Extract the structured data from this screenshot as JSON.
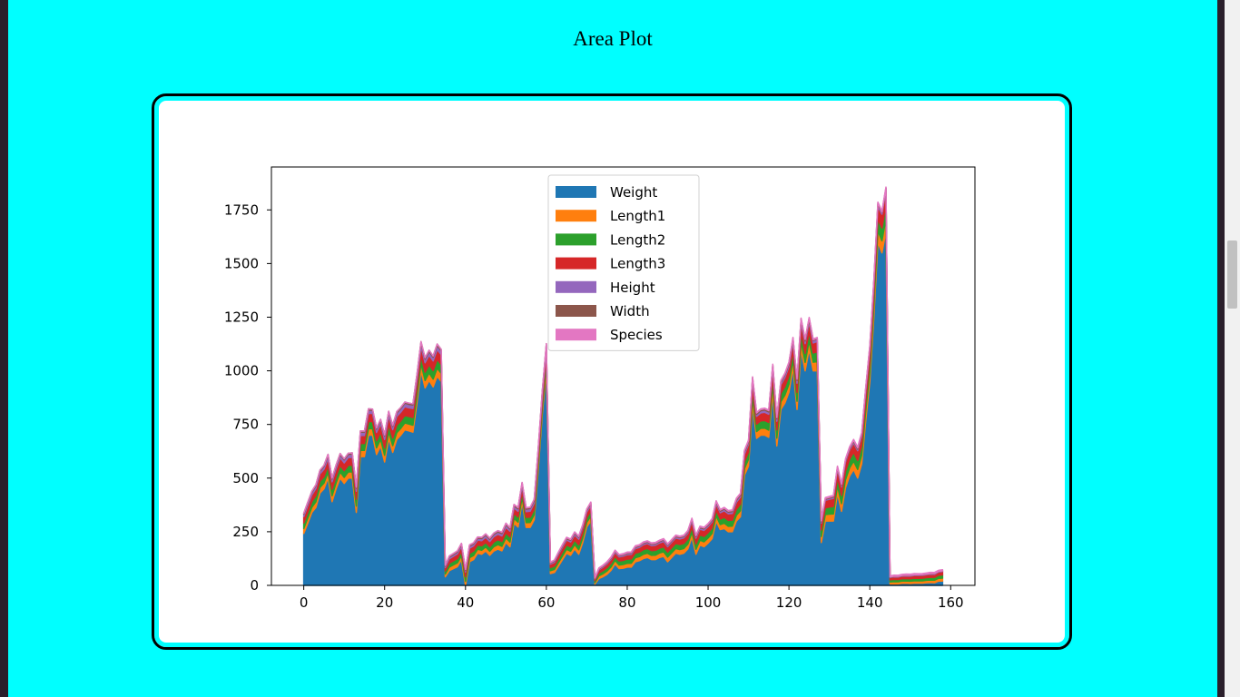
{
  "page": {
    "title": "Area Plot"
  },
  "chart_data": {
    "type": "area",
    "stacked": true,
    "title": "",
    "xlabel": "",
    "ylabel": "",
    "xlim": [
      -8,
      166
    ],
    "ylim": [
      0,
      1950
    ],
    "xticks": [
      0,
      20,
      40,
      60,
      80,
      100,
      120,
      140,
      160
    ],
    "yticks": [
      0,
      250,
      500,
      750,
      1000,
      1250,
      1500,
      1750
    ],
    "legend_position": "top-center",
    "series": [
      {
        "name": "Weight",
        "color": "#1f77b4"
      },
      {
        "name": "Length1",
        "color": "#ff7f0e"
      },
      {
        "name": "Length2",
        "color": "#2ca02c"
      },
      {
        "name": "Length3",
        "color": "#d62728"
      },
      {
        "name": "Height",
        "color": "#9467bd"
      },
      {
        "name": "Width",
        "color": "#8c564b"
      },
      {
        "name": "Species",
        "color": "#e377c2"
      }
    ],
    "x": [
      0,
      1,
      2,
      3,
      4,
      5,
      6,
      7,
      8,
      9,
      10,
      11,
      12,
      13,
      14,
      15,
      16,
      17,
      18,
      19,
      20,
      21,
      22,
      23,
      24,
      25,
      26,
      27,
      28,
      29,
      30,
      31,
      32,
      33,
      34,
      35,
      36,
      37,
      38,
      39,
      40,
      41,
      42,
      43,
      44,
      45,
      46,
      47,
      48,
      49,
      50,
      51,
      52,
      53,
      54,
      55,
      56,
      57,
      58,
      59,
      60,
      61,
      62,
      63,
      64,
      65,
      66,
      67,
      68,
      69,
      70,
      71,
      72,
      73,
      74,
      75,
      76,
      77,
      78,
      79,
      80,
      81,
      82,
      83,
      84,
      85,
      86,
      87,
      88,
      89,
      90,
      91,
      92,
      93,
      94,
      95,
      96,
      97,
      98,
      99,
      100,
      101,
      102,
      103,
      104,
      105,
      106,
      107,
      108,
      109,
      110,
      111,
      112,
      113,
      114,
      115,
      116,
      117,
      118,
      119,
      120,
      121,
      122,
      123,
      124,
      125,
      126,
      127,
      128,
      129,
      130,
      131,
      132,
      133,
      134,
      135,
      136,
      137,
      138,
      139,
      140,
      141,
      142,
      143,
      144,
      145,
      146,
      147,
      148,
      149,
      150,
      151,
      152,
      153,
      154,
      155,
      156,
      157,
      158
    ],
    "values": {
      "Weight": [
        242,
        290,
        340,
        363,
        430,
        450,
        500,
        390,
        450,
        500,
        475,
        500,
        500,
        340,
        600,
        600,
        700,
        700,
        610,
        650,
        575,
        685,
        620,
        680,
        700,
        725,
        720,
        714,
        850,
        1000,
        920,
        955,
        925,
        975,
        950,
        40,
        69,
        78,
        87,
        120,
        0,
        110,
        120,
        150,
        145,
        160,
        140,
        160,
        169,
        161,
        200,
        180,
        290,
        272,
        390,
        270,
        270,
        306,
        540,
        800,
        1000,
        55,
        60,
        90,
        120,
        150,
        140,
        170,
        145,
        200,
        273,
        300,
        5.9,
        32,
        40,
        51.5,
        70,
        100,
        78,
        80,
        85,
        85,
        110,
        115,
        125,
        130,
        120,
        120,
        130,
        135,
        110,
        130,
        150,
        145,
        150,
        170,
        225,
        145,
        188,
        180,
        197,
        218,
        300,
        260,
        265,
        250,
        250,
        300,
        320,
        514,
        556,
        840,
        685,
        700,
        700,
        690,
        900,
        650,
        820,
        850,
        900,
        1015,
        820,
        1100,
        1000,
        1100,
        1000,
        1000,
        200,
        300,
        300,
        300,
        430,
        345,
        456,
        510,
        540,
        500,
        567,
        770,
        950,
        1250,
        1600,
        1550,
        1650,
        6.7,
        7.5,
        7,
        9.7,
        9.8,
        8.7,
        10,
        9.9,
        9.8,
        12.2,
        13.4,
        12.2,
        19.7,
        19.9
      ],
      "Length1": [
        23.2,
        24,
        23.9,
        26.3,
        26.5,
        26.8,
        26.8,
        27.6,
        27.6,
        28.5,
        28.4,
        28.7,
        29.1,
        29.5,
        29.4,
        29.4,
        30.4,
        30.4,
        30.9,
        31,
        31.3,
        31.4,
        31.5,
        31.8,
        31.9,
        31.8,
        32,
        32.7,
        32.8,
        33.5,
        35,
        35,
        36.2,
        37.4,
        38,
        12.9,
        16.5,
        17.5,
        18.2,
        18.6,
        19,
        19.1,
        19.4,
        18.4,
        18.6,
        19.1,
        19.2,
        20.2,
        21,
        21.2,
        21.5,
        22,
        21.5,
        22.5,
        22.1,
        22.5,
        23.2,
        23.5,
        25.2,
        26.5,
        32.1,
        13.5,
        14.3,
        16.3,
        17.5,
        18.4,
        19,
        19.8,
        21.2,
        21,
        21,
        22.4,
        7.5,
        12.5,
        13.8,
        15,
        15.7,
        16.2,
        16.8,
        17.2,
        17.8,
        18.2,
        19,
        19,
        19.8,
        20,
        20,
        20.7,
        21,
        21.5,
        22,
        22,
        22,
        22,
        22,
        22.5,
        23,
        23.5,
        22.5,
        23,
        23.5,
        24,
        24,
        23.5,
        25,
        25.5,
        26,
        26.5,
        28,
        30.5,
        32,
        35,
        32,
        32,
        33,
        33.5,
        35,
        36,
        36,
        37,
        37,
        37,
        38,
        38,
        39,
        39,
        40.1,
        43.2,
        28,
        30,
        32,
        33,
        35,
        36,
        37,
        38,
        39,
        40,
        40.5,
        43,
        46,
        48,
        52,
        56,
        59,
        9.3,
        10,
        10.1,
        10.4,
        10.7,
        10.8,
        11.3,
        11.3,
        11.4,
        11.5,
        11.7,
        12.1,
        13.2,
        13.8
      ],
      "Length2": [
        25.4,
        26.3,
        26.5,
        29,
        29,
        29.7,
        29.7,
        30,
        30,
        30.7,
        31,
        31,
        31.5,
        32,
        32,
        32,
        33,
        33,
        33.5,
        33.5,
        34,
        34,
        34.5,
        35,
        35,
        35,
        35,
        36,
        36,
        37,
        38.5,
        38.5,
        39.5,
        41,
        41,
        14.1,
        18.2,
        18.8,
        19.8,
        20,
        20.5,
        20.8,
        21,
        20,
        21,
        21,
        21,
        22,
        22.5,
        22.5,
        23.5,
        24,
        23.5,
        24.5,
        24,
        24.5,
        25,
        25.5,
        27,
        28,
        35,
        14.7,
        15.5,
        17.7,
        19,
        20,
        20.5,
        21.5,
        23,
        23,
        23,
        24,
        8.4,
        13.7,
        15,
        16.2,
        17.4,
        18,
        18.7,
        19,
        19.6,
        20,
        21,
        21,
        22,
        22,
        22,
        22.5,
        22.5,
        23,
        23.5,
        23.5,
        23.5,
        23.5,
        23.5,
        24,
        24.2,
        24.5,
        24.5,
        25,
        25,
        25.5,
        26,
        25.5,
        27,
        27.5,
        28,
        28.5,
        30.5,
        32.5,
        34,
        37.3,
        34.5,
        34.6,
        35.5,
        36,
        37.5,
        38.5,
        39,
        39.5,
        40,
        40.5,
        41,
        41,
        42,
        42,
        43,
        45,
        30,
        31.6,
        33.5,
        35,
        37,
        38,
        39.5,
        40,
        41,
        42,
        43,
        45,
        49,
        51,
        55,
        60,
        63.4,
        9.8,
        10.5,
        10.6,
        11,
        11.2,
        11.3,
        11.8,
        11.8,
        12,
        12.2,
        12.4,
        13,
        14.3,
        15
      ],
      "Length3": [
        30,
        31.2,
        31.1,
        33.5,
        34,
        34.7,
        34.5,
        35,
        35.1,
        36.2,
        36.2,
        36.2,
        36.4,
        37.3,
        37.2,
        37.2,
        38.3,
        38.5,
        38.6,
        38.7,
        39.5,
        39.2,
        39.7,
        40.6,
        40.5,
        40.9,
        40.6,
        41.5,
        41.6,
        42.6,
        44.1,
        44,
        45.3,
        45.9,
        46.5,
        16.2,
        20.3,
        21.2,
        22.2,
        22.2,
        22.8,
        23.1,
        23.7,
        22.4,
        23.6,
        23.9,
        24,
        25,
        25.5,
        25.7,
        26.1,
        26.5,
        25.4,
        26.3,
        26.5,
        26.7,
        27.6,
        28,
        29.2,
        30.3,
        36.4,
        16.1,
        17.8,
        20.2,
        21.5,
        22.6,
        22.9,
        23.6,
        26,
        25.3,
        25.1,
        26.7,
        8.8,
        14.7,
        16,
        17.2,
        18.5,
        19.2,
        19.4,
        20.2,
        20.6,
        21,
        21.9,
        21.9,
        22.9,
        22.9,
        23.2,
        24.1,
        24.2,
        25.1,
        25.2,
        25.2,
        25.4,
        25.6,
        25.8,
        26.3,
        27.2,
        27.3,
        27.3,
        27.9,
        28.4,
        28.9,
        29.4,
        29.6,
        30.6,
        30.6,
        31.1,
        32.5,
        33.1,
        34.4,
        36.1,
        39.8,
        36.3,
        37,
        38.2,
        38.3,
        39.3,
        40.5,
        40.3,
        42,
        42.6,
        42.6,
        43.2,
        44.5,
        45.9,
        45.9,
        46.8,
        48.2,
        32.8,
        34.8,
        35.5,
        37.3,
        39.4,
        40,
        42.5,
        42.5,
        43.7,
        45.5,
        46,
        48,
        53,
        54.9,
        58.5,
        64,
        68,
        10.8,
        11.6,
        11.6,
        12,
        12.4,
        12.6,
        13.1,
        13.1,
        13.2,
        13.4,
        13.5,
        13.8,
        15.2,
        16.2
      ],
      "Height": [
        11.5,
        12.5,
        12.4,
        12.7,
        12.4,
        13.6,
        14.2,
        12.7,
        14,
        14.2,
        14.3,
        14.9,
        14.7,
        13.8,
        15.4,
        15.6,
        15.2,
        14.7,
        15.4,
        15.5,
        15.9,
        16.4,
        14.5,
        16.4,
        16.8,
        16.1,
        15.9,
        16.4,
        17.1,
        17.2,
        16.8,
        17.5,
        17.1,
        18.9,
        17.9,
        6.4,
        7.7,
        8.0,
        8.2,
        9.2,
        7.0,
        10.0,
        9.0,
        9.2,
        10.2,
        10.3,
        10.6,
        10.3,
        11.0,
        10.8,
        12.2,
        10.4,
        10.4,
        11.4,
        11.1,
        11.7,
        12.4,
        12.2,
        13.0,
        15.3,
        16.5,
        4.8,
        5.5,
        6.1,
        6.9,
        7.2,
        7.6,
        7.9,
        8.3,
        7.7,
        7.9,
        8.8,
        2.1,
        3.5,
        3.8,
        4.6,
        4.9,
        5.0,
        4.9,
        5.1,
        5.6,
        5.4,
        5.8,
        5.8,
        6.2,
        6.3,
        6.3,
        6.1,
        6.2,
        6.6,
        6.2,
        6.2,
        6.3,
        6.9,
        6.1,
        6.3,
        6.9,
        7.0,
        6.9,
        7.4,
        7.0,
        7.6,
        7.6,
        7.6,
        8.2,
        8.1,
        8.6,
        9.6,
        9.5,
        10.5,
        10.5,
        11.1,
        9.9,
        10.1,
        10.5,
        10.4,
        10.5,
        11.0,
        10.7,
        11.6,
        11.7,
        10.9,
        12.4,
        12.4,
        11.8,
        11.0,
        11.8,
        12.2,
        5.6,
        5.1,
        5.6,
        6.3,
        6.0,
        6.4,
        6.8,
        6.9,
        7.3,
        7.3,
        7.3,
        7.9,
        8.6,
        8.6,
        9.4,
        9.6,
        10.8,
        1.7,
        1.7,
        1.7,
        2.2,
        2.1,
        2.1,
        2.2,
        2.1,
        2.2,
        2.1,
        2.4,
        2.3,
        2.9,
        2.9
      ],
      "Width": [
        4.0,
        4.3,
        4.7,
        4.5,
        5.1,
        4.9,
        5.6,
        4.5,
        4.8,
        5.0,
        5.1,
        5.1,
        5.6,
        5.0,
        5.5,
        5.1,
        5.6,
        5.2,
        5.3,
        5.2,
        5.2,
        5.7,
        5.4,
        6.1,
        5.6,
        5.5,
        5.9,
        5.7,
        6.0,
        6.0,
        6.5,
        6.1,
        5.9,
        6.7,
        6.0,
        3.6,
        4.6,
        4.7,
        4.9,
        5.0,
        4.7,
        5.2,
        4.8,
        4.9,
        5.1,
        5.2,
        5.2,
        5.6,
        5.4,
        5.9,
        5.7,
        5.7,
        5.8,
        5.9,
        5.3,
        5.9,
        5.4,
        5.8,
        6.0,
        6.4,
        6.0,
        2.6,
        3.3,
        3.7,
        3.9,
        4.1,
        4.1,
        4.6,
        4.6,
        4.8,
        4.6,
        4.7,
        1.4,
        2.1,
        2.7,
        2.9,
        3.0,
        3.1,
        3.2,
        3.4,
        3.6,
        3.6,
        3.7,
        3.6,
        3.8,
        3.6,
        3.6,
        3.9,
        3.9,
        4.0,
        4.1,
        4.0,
        4.1,
        3.5,
        4.1,
        4.0,
        4.0,
        4.3,
        4.2,
        4.5,
        4.3,
        4.4,
        4.6,
        4.6,
        4.6,
        4.5,
        5.2,
        6.0,
        5.4,
        5.6,
        5.5,
        5.8,
        5.7,
        5.9,
        5.9,
        6.2,
        5.6,
        6.3,
        6.3,
        6.0,
        6.5,
        6.6,
        6.6,
        6.8,
        7.3,
        7.8,
        3.5,
        3.7,
        4.0,
        4.0,
        4.1,
        4.7,
        4.4,
        5.3,
        4.8,
        4.6,
        5.3,
        5.7,
        6.1,
        6.2,
        7.3,
        6.6,
        7.3,
        1.0,
        1.2,
        1.3,
        1.3,
        1.3,
        1.2,
        1.4,
        1.6,
        1.4,
        1.3,
        1.4,
        1.4,
        2.2,
        2.0
      ],
      "Species": [
        0,
        0,
        0,
        0,
        0,
        0,
        0,
        0,
        0,
        0,
        0,
        0,
        0,
        0,
        0,
        0,
        0,
        0,
        0,
        0,
        0,
        0,
        0,
        0,
        0,
        0,
        0,
        0,
        0,
        0,
        0,
        0,
        0,
        0,
        0,
        1,
        1,
        1,
        1,
        1,
        1,
        1,
        1,
        1,
        1,
        1,
        1,
        1,
        1,
        1,
        1,
        1,
        1,
        1,
        1,
        1,
        1,
        1,
        1,
        1,
        1,
        2,
        2,
        2,
        2,
        2,
        2,
        2,
        2,
        2,
        2,
        2,
        3,
        3,
        3,
        3,
        3,
        3,
        3,
        3,
        3,
        3,
        3,
        3,
        3,
        3,
        3,
        3,
        3,
        3,
        3,
        3,
        3,
        3,
        3,
        3,
        3,
        3,
        3,
        3,
        3,
        3,
        3,
        3,
        3,
        3,
        3,
        3,
        3,
        3,
        3,
        3,
        3,
        3,
        3,
        3,
        3,
        3,
        3,
        3,
        3,
        3,
        3,
        3,
        3,
        3,
        3,
        3,
        4,
        4,
        4,
        4,
        4,
        4,
        4,
        4,
        4,
        4,
        4,
        4,
        4,
        4,
        4,
        4,
        4,
        5,
        5,
        5,
        5,
        5,
        5,
        5,
        5,
        5,
        5,
        5,
        5,
        5,
        5
      ]
    }
  }
}
